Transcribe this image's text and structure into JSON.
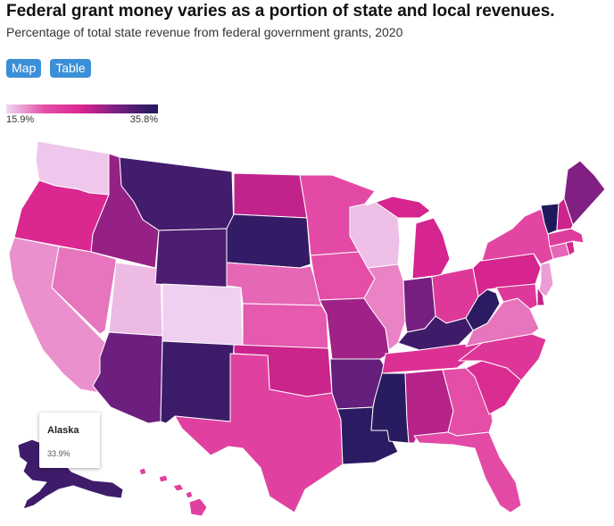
{
  "title": "Federal grant money varies as a portion of state and local revenues.",
  "subtitle": "Percentage of total state revenue from federal government grants, 2020",
  "tabs": [
    {
      "label": "Map",
      "active": true
    },
    {
      "label": "Table",
      "active": false
    }
  ],
  "legend": {
    "min_label": "15.9%",
    "max_label": "35.8%",
    "min": 15.9,
    "max": 35.8,
    "colors": [
      "#f0d8f5",
      "#e44fa8",
      "#d9258e",
      "#6f1f80",
      "#1f1a5c"
    ]
  },
  "tooltip": {
    "state": "Alaska",
    "value_label": "33.9%"
  },
  "map_data": {
    "type": "choropleth",
    "metric": "Percentage of total state revenue from federal government grants",
    "year": 2020,
    "values": {
      "WA": 16.5,
      "OR": 25.5,
      "CA": 18.5,
      "ID": 29.0,
      "NV": 19.5,
      "UT": 17.0,
      "AZ": 31.0,
      "MT": 33.5,
      "WY": 33.0,
      "CO": 16.2,
      "NM": 34.0,
      "ND": 27.0,
      "SD": 34.5,
      "NE": 20.0,
      "KS": 20.5,
      "OK": 26.5,
      "TX": 22.5,
      "MN": 21.5,
      "IA": 21.0,
      "MO": 28.5,
      "AR": 31.5,
      "LA": 35.0,
      "WI": 16.8,
      "IL": 19.0,
      "MI": 26.0,
      "IN": 30.5,
      "OH": 23.5,
      "KY": 33.8,
      "TN": 24.5,
      "MS": 35.2,
      "AL": 27.5,
      "GA": 21.0,
      "FL": 21.5,
      "SC": 25.0,
      "NC": 24.0,
      "VA": 19.5,
      "WV": 35.0,
      "PA": 26.0,
      "NY": 22.0,
      "VT": 35.8,
      "NH": 26.5,
      "ME": 30.0,
      "MA": 23.0,
      "RI": 26.0,
      "CT": 20.0,
      "NJ": 18.0,
      "DE": 27.0,
      "MD": 23.5,
      "AK": 33.9,
      "HI": 22.5
    }
  }
}
